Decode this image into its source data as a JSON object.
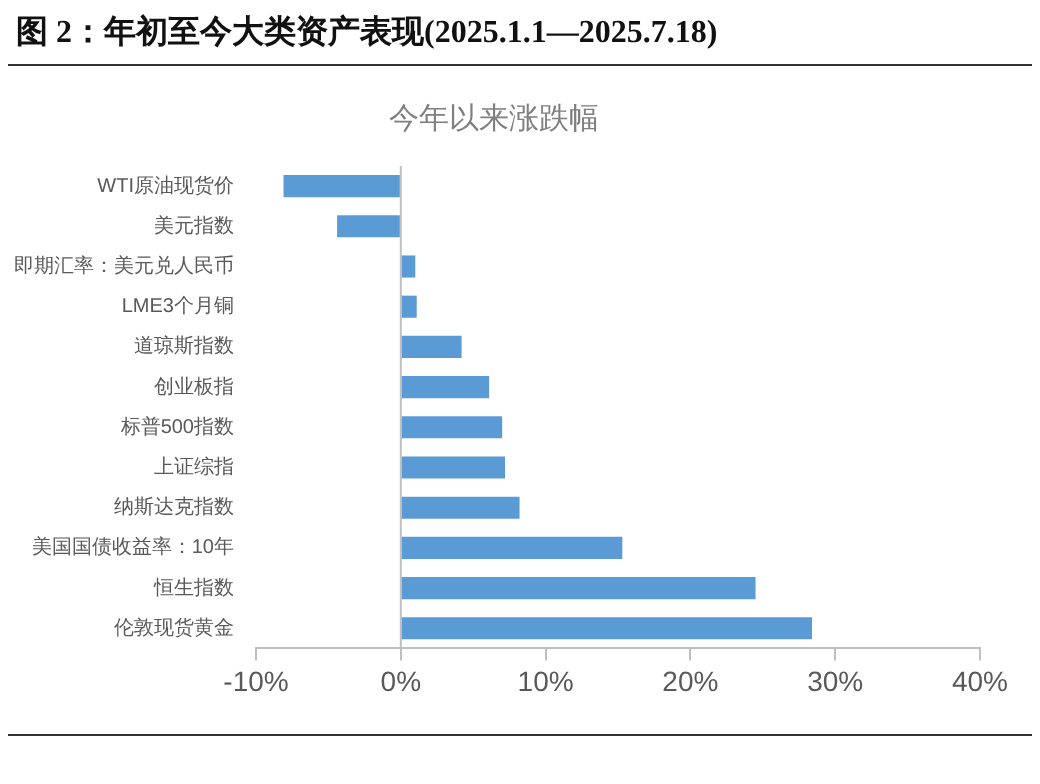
{
  "chart_data": {
    "type": "bar",
    "orientation": "horizontal",
    "title": "图 2：年初至今大类资产表现(2025.1.1—2025.7.18)",
    "subtitle": "今年以来涨跌幅",
    "categories": [
      "WTI原油现货价",
      "美元指数",
      "即期汇率：美元兑人民币",
      "LME3个月铜",
      "道琼斯指数",
      "创业板指",
      "标普500指数",
      "上证综指",
      "纳斯达克指数",
      "美国国债收益率：10年",
      "恒生指数",
      "伦敦现货黄金"
    ],
    "values": [
      -8.1,
      -4.4,
      1.0,
      1.1,
      4.2,
      6.1,
      7.0,
      7.2,
      8.2,
      15.3,
      24.5,
      28.4
    ],
    "color": "#5b9bd5",
    "xlim": [
      -10,
      40
    ],
    "xticks": [
      {
        "value": -10,
        "label": "-10%"
      },
      {
        "value": 0,
        "label": "0%"
      },
      {
        "value": 10,
        "label": "10%"
      },
      {
        "value": 20,
        "label": "20%"
      },
      {
        "value": 30,
        "label": "30%"
      },
      {
        "value": 40,
        "label": "40%"
      }
    ],
    "ref_lines": [
      {
        "axis": "x",
        "value": 0,
        "color": "#bfbfbf"
      }
    ],
    "grid": false,
    "legend": false
  }
}
